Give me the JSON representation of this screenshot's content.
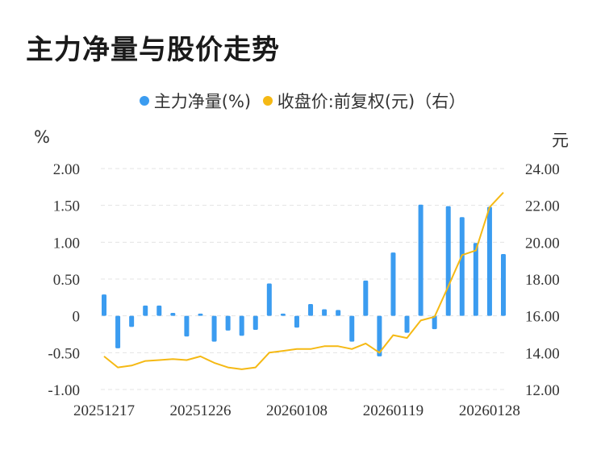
{
  "title": "主力净量与股价走势",
  "legend": {
    "bar_label": "主力净量(%)",
    "line_label": "收盘价:前复权(元)（右）"
  },
  "units": {
    "left": "%",
    "right": "元"
  },
  "colors": {
    "bar": "#3b9cf0",
    "line": "#f5b914",
    "grid": "#e3e3e3"
  },
  "chart_data": {
    "type": "bar+line",
    "x_tick_labels": [
      "20251217",
      "20251226",
      "20260108",
      "20260119",
      "20260128"
    ],
    "x_tick_index": [
      0,
      7,
      14,
      21,
      28
    ],
    "left_axis": {
      "min": -1.0,
      "max": 2.0,
      "ticks": [
        "2.00",
        "1.50",
        "1.00",
        "0.50",
        "0",
        "-0.50",
        "-1.00"
      ],
      "tick_values": [
        2.0,
        1.5,
        1.0,
        0.5,
        0,
        -0.5,
        -1.0
      ]
    },
    "right_axis": {
      "min": 12.0,
      "max": 24.0,
      "ticks": [
        "24.00",
        "22.00",
        "20.00",
        "18.00",
        "16.00",
        "14.00",
        "12.00"
      ],
      "tick_values": [
        24,
        22,
        20,
        18,
        16,
        14,
        12
      ]
    },
    "series": [
      {
        "name": "主力净量(%)",
        "type": "bar",
        "axis": "left",
        "values": [
          0.29,
          -0.44,
          -0.15,
          0.14,
          0.14,
          0.04,
          -0.28,
          0.03,
          -0.35,
          -0.2,
          -0.27,
          -0.19,
          0.44,
          0.03,
          -0.16,
          0.16,
          0.09,
          0.08,
          -0.35,
          0.48,
          -0.55,
          0.86,
          -0.23,
          1.51,
          -0.18,
          1.49,
          1.34,
          0.99,
          1.48,
          0.84
        ]
      },
      {
        "name": "收盘价:前复权(元)（右）",
        "type": "line",
        "axis": "right",
        "values": [
          13.8,
          13.2,
          13.3,
          13.55,
          13.6,
          13.65,
          13.6,
          13.8,
          13.45,
          13.2,
          13.1,
          13.2,
          14.0,
          14.1,
          14.2,
          14.2,
          14.35,
          14.35,
          14.2,
          14.5,
          14.0,
          14.95,
          14.8,
          15.75,
          15.95,
          17.6,
          19.3,
          19.55,
          21.9,
          22.7
        ]
      }
    ]
  }
}
